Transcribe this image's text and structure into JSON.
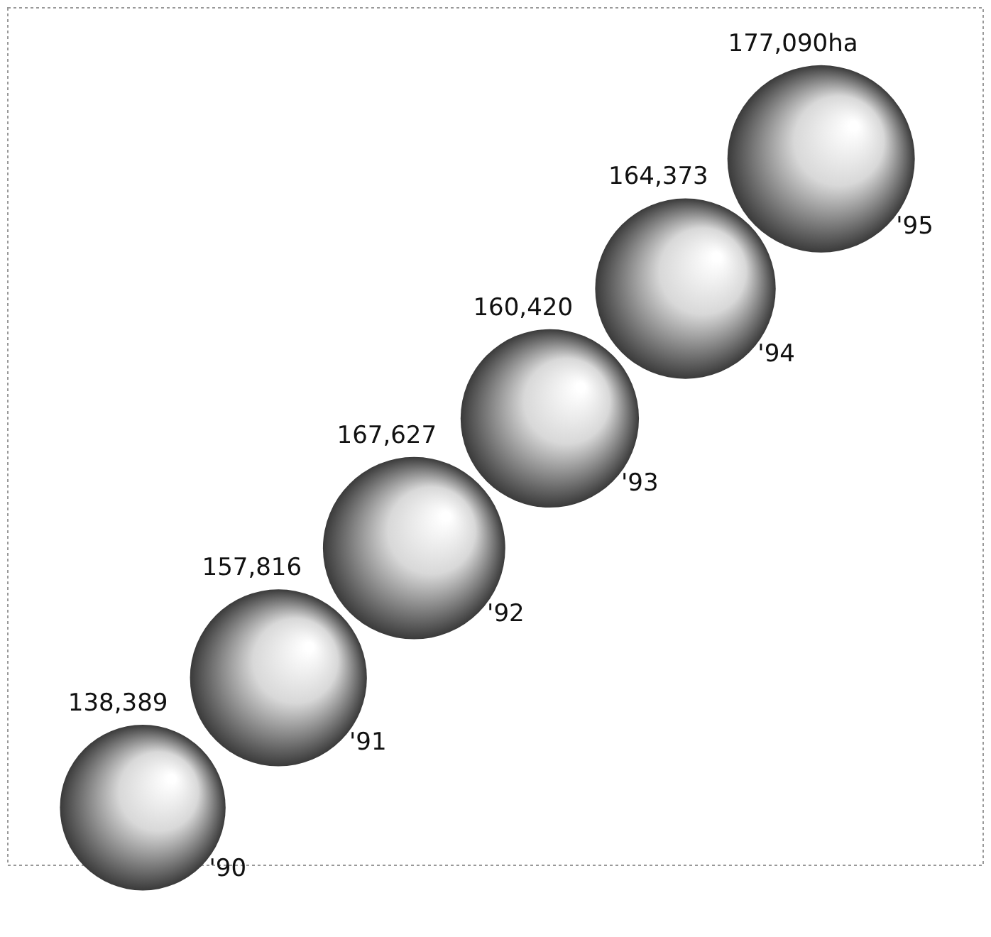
{
  "chart_data": {
    "type": "other",
    "categories": [
      "'90",
      "'91",
      "'92",
      "'93",
      "'94",
      "'95"
    ],
    "values": [
      138389,
      157816,
      167627,
      160420,
      164373,
      177090
    ],
    "value_labels": [
      "138,389",
      "157,816",
      "167,627",
      "160,420",
      "164,373",
      "177,090ha"
    ],
    "color": "#3a3a3a"
  }
}
